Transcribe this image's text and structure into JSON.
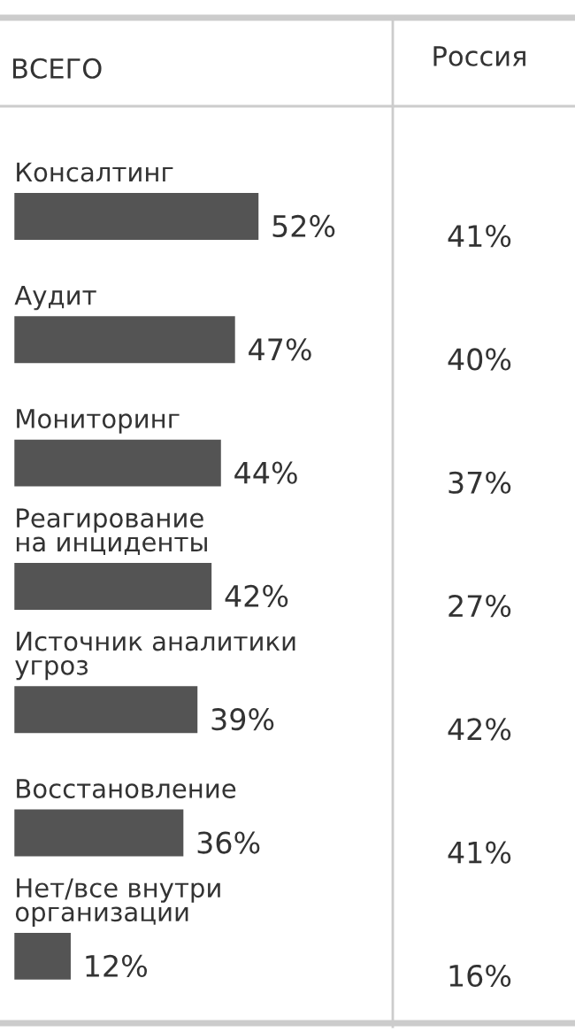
{
  "chart_data": [
    {
      "type": "bar",
      "orientation": "horizontal",
      "title": "ВСЕГО",
      "categories": [
        "Консалтинг",
        "Аудит",
        "Мониторинг",
        "Реагирование\nна инциденты",
        "Источник аналитики\nугроз",
        "Восстановление",
        "Нет/все внутри\nорганизации"
      ],
      "values": [
        52,
        47,
        44,
        42,
        39,
        36,
        12
      ],
      "value_labels": [
        "52%",
        "47%",
        "44%",
        "42%",
        "39%",
        "36%",
        "12%"
      ],
      "color": "#545454"
    },
    {
      "type": "other",
      "title": "Россия",
      "categories": [
        null,
        null,
        null,
        null,
        null,
        null,
        null
      ],
      "values": [
        41,
        40,
        37,
        27,
        42,
        41,
        16
      ],
      "value_labels": [
        "41%",
        "40%",
        "37%",
        "27%",
        "42%",
        "41%",
        "16%"
      ]
    }
  ]
}
